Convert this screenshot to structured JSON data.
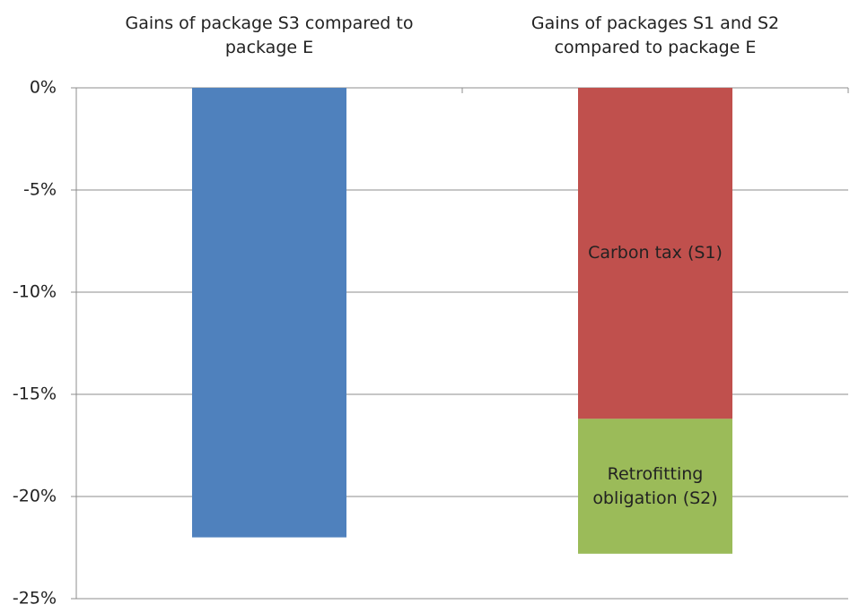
{
  "chart_data": {
    "type": "stacked_bar",
    "categories": [
      "Gains of package S3 compared to package E",
      "Gains of  packages S1 and S2 compared to package E"
    ],
    "series": [
      {
        "color": "#4f81bd",
        "values": [
          -22,
          null
        ]
      },
      {
        "name": "Carbon tax (S1)",
        "color": "#c0504d",
        "values": [
          null,
          -16.2
        ]
      },
      {
        "name": "Retrofitting obligation (S2)",
        "color": "#9bbb59",
        "values": [
          null,
          -6.6
        ]
      }
    ],
    "ylim": [
      -25,
      0
    ],
    "yticks": [
      {
        "value": -25,
        "label": "-25%"
      },
      {
        "value": -20,
        "label": "-20%"
      },
      {
        "value": -15,
        "label": "-15%"
      },
      {
        "value": -10,
        "label": "-10%"
      },
      {
        "value": -5,
        "label": "-5%"
      },
      {
        "value": 0,
        "label": "0%"
      }
    ],
    "grid": true
  }
}
